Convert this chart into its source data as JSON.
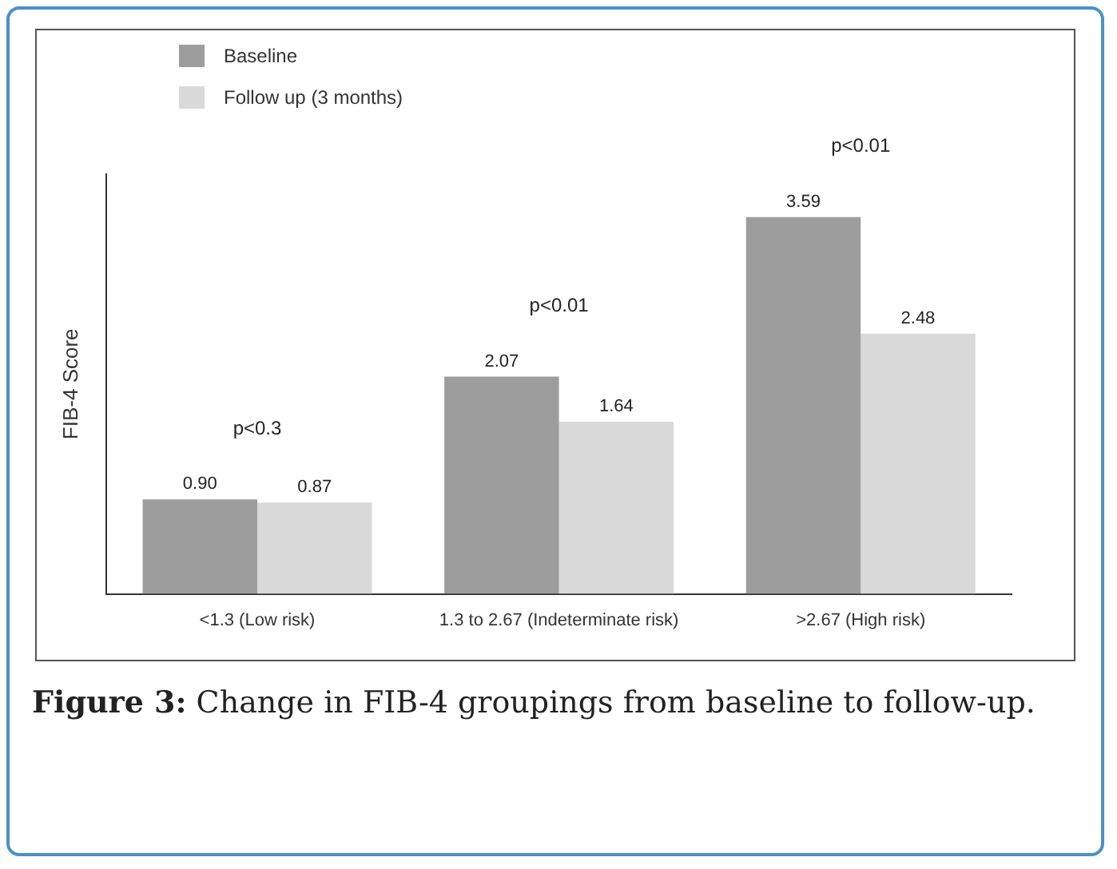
{
  "chart_data": {
    "type": "bar",
    "ylabel": "FIB-4 Score",
    "categories": [
      "<1.3 (Low risk)",
      "1.3 to 2.67 (Indeterminate risk)",
      ">2.67 (High risk)"
    ],
    "series": [
      {
        "name": "Baseline",
        "color": "#9d9d9d",
        "values": [
          0.9,
          2.07,
          3.59
        ],
        "value_labels": [
          "0.90",
          "2.07",
          "3.59"
        ]
      },
      {
        "name": "Follow up (3 months)",
        "color": "#d9d9d9",
        "values": [
          0.87,
          1.64,
          2.48
        ],
        "value_labels": [
          "0.87",
          "1.64",
          "2.48"
        ]
      }
    ],
    "grid": false,
    "legend": "top left",
    "tick_labels": "x",
    "annotations": [
      "p<0.3",
      "p<0.01",
      "p<0.01",
      "Figure 3: Change in FIB-4 groupings from baseline to follow-up."
    ]
  }
}
